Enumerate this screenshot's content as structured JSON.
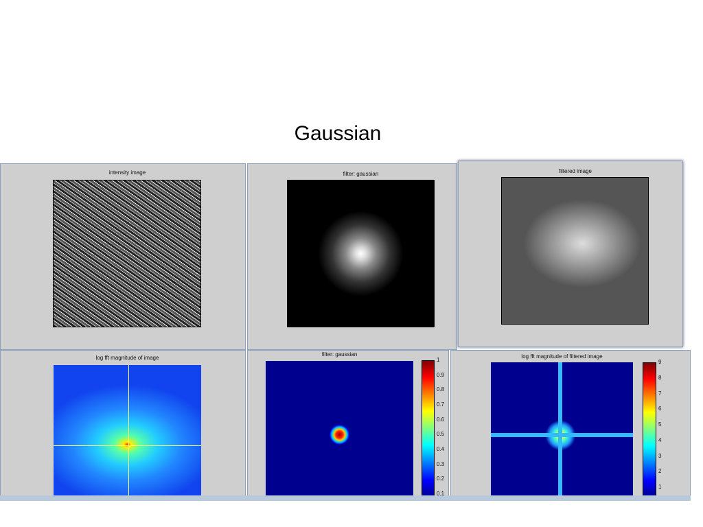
{
  "title": "Gaussian",
  "panels": [
    {
      "title": "intensity image"
    },
    {
      "title": "filter: gaussian"
    },
    {
      "title": "filtered image"
    },
    {
      "title": "log fft magnitude of image"
    },
    {
      "title": "filter: gaussian"
    },
    {
      "title": "log fft magnitude of filtered image"
    }
  ],
  "colorbars": [
    {
      "ticks": [
        "1",
        "0.9",
        "0.8",
        "0.7",
        "0.6",
        "0.5",
        "0.4",
        "0.3",
        "0.2",
        "0.1"
      ]
    },
    {
      "ticks": [
        "9",
        "8",
        "7",
        "6",
        "5",
        "4",
        "3",
        "2",
        "1"
      ]
    }
  ]
}
